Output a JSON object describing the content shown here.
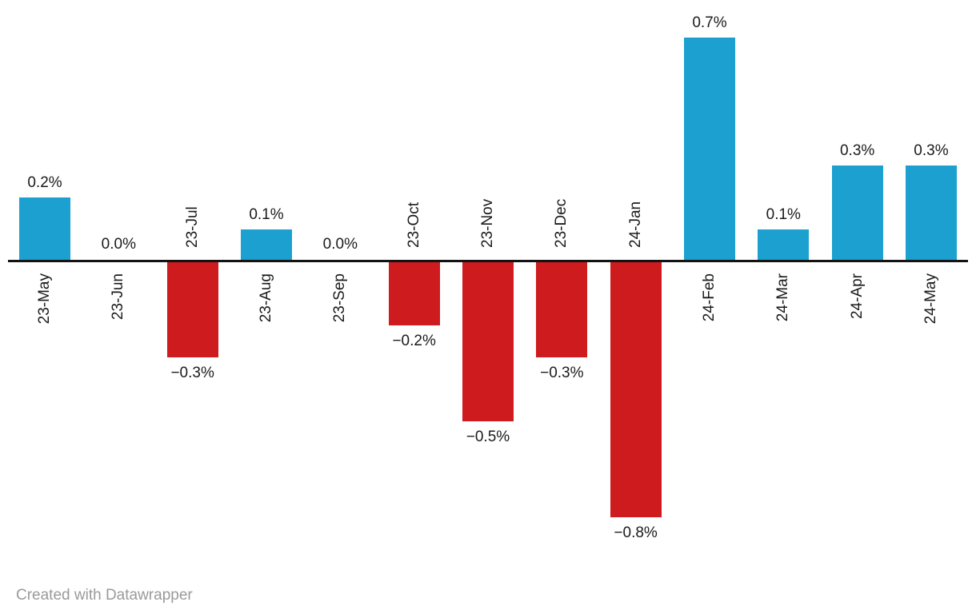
{
  "chart_data": {
    "type": "bar",
    "categories": [
      "23-May",
      "23-Jun",
      "23-Jul",
      "23-Aug",
      "23-Sep",
      "23-Oct",
      "23-Nov",
      "23-Dec",
      "24-Jan",
      "24-Feb",
      "24-Mar",
      "24-Apr",
      "24-May"
    ],
    "values": [
      0.2,
      0.0,
      -0.3,
      0.1,
      0.0,
      -0.2,
      -0.5,
      -0.3,
      -0.8,
      0.7,
      0.1,
      0.3,
      0.3
    ],
    "value_labels": [
      "0.2%",
      "0.0%",
      "−0.3%",
      "0.1%",
      "0.0%",
      "−0.2%",
      "−0.5%",
      "−0.3%",
      "−0.8%",
      "0.7%",
      "0.1%",
      "0.3%",
      "0.3%"
    ],
    "title": "",
    "xlabel": "",
    "ylabel": "",
    "unit": "%",
    "ylim": [
      -0.9,
      0.8
    ],
    "grid": false,
    "legend": "none",
    "colors": {
      "positive": "#1CA0CF",
      "negative": "#CE1B1E",
      "axis": "#131313",
      "label": "#1a1a1a"
    }
  },
  "footer": {
    "credit": "Created with Datawrapper"
  }
}
